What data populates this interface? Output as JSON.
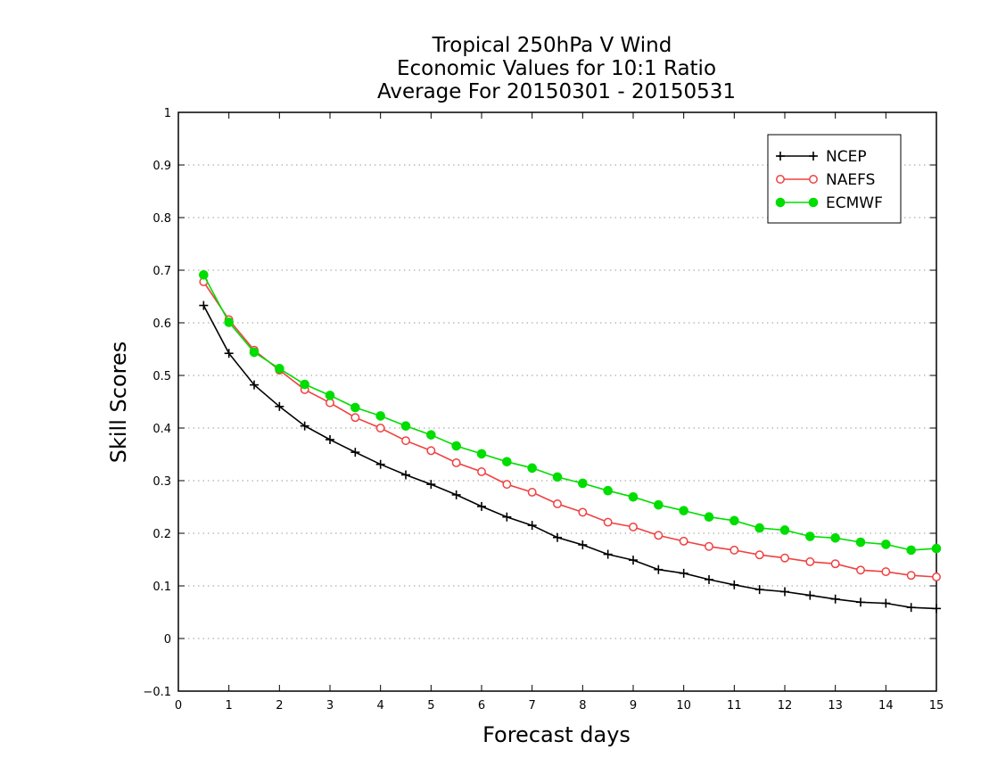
{
  "chart_data": {
    "type": "line",
    "title_lines": [
      "Tropical 250hPa V Wind",
      "Economic Values for 10:1 Ratio",
      "Average For 20150301 - 20150531"
    ],
    "xlabel": "Forecast days",
    "ylabel": "Skill Scores",
    "xlim": [
      0,
      15
    ],
    "ylim": [
      -0.1,
      1
    ],
    "xticks": [
      "0",
      "1",
      "2",
      "3",
      "4",
      "5",
      "6",
      "7",
      "8",
      "9",
      "10",
      "11",
      "12",
      "13",
      "14",
      "15"
    ],
    "yticks": [
      "−0.1",
      "0",
      "0.1",
      "0.2",
      "0.3",
      "0.4",
      "0.5",
      "0.6",
      "0.7",
      "0.8",
      "0.9",
      "1"
    ],
    "grid": "horizontal dotted",
    "legend_position": "top-right",
    "x": [
      0.5,
      1,
      1.5,
      2,
      2.5,
      3,
      3.5,
      4,
      4.5,
      5,
      5.5,
      6,
      6.5,
      7,
      7.5,
      8,
      8.5,
      9,
      9.5,
      10,
      10.5,
      11,
      11.5,
      12,
      12.5,
      13,
      13.5,
      14,
      14.5,
      15
    ],
    "series": [
      {
        "name": "NCEP",
        "color": "#000000",
        "marker": "plus",
        "values": [
          0.633,
          0.542,
          0.482,
          0.441,
          0.404,
          0.378,
          0.354,
          0.331,
          0.311,
          0.293,
          0.273,
          0.251,
          0.231,
          0.215,
          0.192,
          0.178,
          0.16,
          0.149,
          0.131,
          0.124,
          0.112,
          0.102,
          0.093,
          0.089,
          0.082,
          0.075,
          0.069,
          0.067,
          0.059,
          0.057
        ]
      },
      {
        "name": "NAEFS",
        "color": "#f04040",
        "marker": "open-circle",
        "values": [
          0.678,
          0.606,
          0.548,
          0.51,
          0.473,
          0.448,
          0.42,
          0.4,
          0.376,
          0.357,
          0.334,
          0.317,
          0.293,
          0.278,
          0.256,
          0.24,
          0.221,
          0.212,
          0.196,
          0.185,
          0.175,
          0.168,
          0.159,
          0.153,
          0.146,
          0.142,
          0.13,
          0.127,
          0.12,
          0.117
        ]
      },
      {
        "name": "ECMWF",
        "color": "#00dd00",
        "marker": "filled-circle",
        "values": [
          0.691,
          0.601,
          0.544,
          0.513,
          0.483,
          0.462,
          0.439,
          0.423,
          0.404,
          0.387,
          0.366,
          0.351,
          0.336,
          0.324,
          0.307,
          0.295,
          0.281,
          0.269,
          0.254,
          0.243,
          0.231,
          0.224,
          0.21,
          0.206,
          0.194,
          0.191,
          0.183,
          0.179,
          0.168,
          0.171
        ]
      }
    ]
  }
}
